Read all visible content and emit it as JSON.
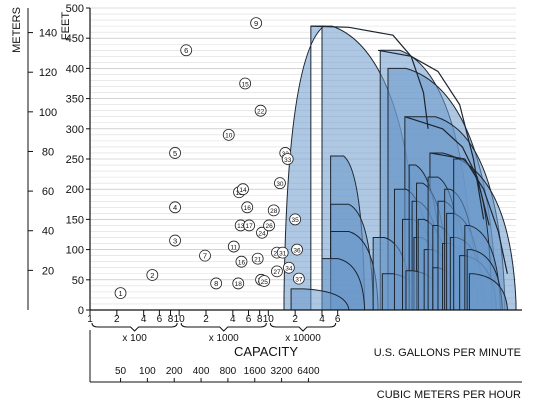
{
  "chart_data": {
    "type": "area",
    "title": "",
    "xlabel": "CAPACITY",
    "xlabel_right": "U.S. GALLONS PER MINUTE",
    "x2label": "CUBIC METERS PER HOUR",
    "ylabel": "FEET",
    "y2label": "METERS",
    "x_scale": "log",
    "xlim": [
      1,
      60000
    ],
    "ylim": [
      0,
      500
    ],
    "grid": "horizontal",
    "y_ticks": [
      "0",
      "50",
      "100",
      "150",
      "200",
      "250",
      "300",
      "350",
      "400",
      "450",
      "500"
    ],
    "y2_ticks": [
      "20",
      "40",
      "60",
      "80",
      "100",
      "120",
      "140"
    ],
    "x_ticks": [
      {
        "gpm": 1,
        "label": "1"
      },
      {
        "gpm": 2,
        "label": "2"
      },
      {
        "gpm": 4,
        "label": "4"
      },
      {
        "gpm": 6,
        "label": "6"
      },
      {
        "gpm": 8,
        "label": "8"
      },
      {
        "gpm": 10,
        "label": "10"
      },
      {
        "gpm": 20,
        "label": "2"
      },
      {
        "gpm": 40,
        "label": "4"
      },
      {
        "gpm": 60,
        "label": "6"
      },
      {
        "gpm": 80,
        "label": "8"
      },
      {
        "gpm": 100,
        "label": "10"
      },
      {
        "gpm": 200,
        "label": "2"
      },
      {
        "gpm": 400,
        "label": "4"
      },
      {
        "gpm": 600,
        "label": "6"
      }
    ],
    "x_multipliers": [
      "x 100",
      "x 1000",
      "x 10000"
    ],
    "x2_ticks": [
      "50",
      "100",
      "200",
      "400",
      "800",
      "1600",
      "3200",
      "6400"
    ],
    "pumps": [
      {
        "id": "1",
        "x_gpm": 220,
        "head_ft": 28
      },
      {
        "id": "2",
        "x_gpm": 500,
        "head_ft": 58
      },
      {
        "id": "3",
        "x_gpm": 900,
        "head_ft": 115
      },
      {
        "id": "4",
        "x_gpm": 900,
        "head_ft": 170
      },
      {
        "id": "5",
        "x_gpm": 900,
        "head_ft": 260
      },
      {
        "id": "6",
        "x_gpm": 1200,
        "head_ft": 430
      },
      {
        "id": "7",
        "x_gpm": 1950,
        "head_ft": 90
      },
      {
        "id": "8",
        "x_gpm": 2600,
        "head_ft": 44
      },
      {
        "id": "9",
        "x_gpm": 7300,
        "head_ft": 475
      },
      {
        "id": "10",
        "x_gpm": 3600,
        "head_ft": 290
      },
      {
        "id": "11",
        "x_gpm": 4100,
        "head_ft": 105
      },
      {
        "id": "12",
        "x_gpm": 4700,
        "head_ft": 195
      },
      {
        "id": "13",
        "x_gpm": 4900,
        "head_ft": 140
      },
      {
        "id": "14",
        "x_gpm": 5200,
        "head_ft": 200
      },
      {
        "id": "15",
        "x_gpm": 5500,
        "head_ft": 375
      },
      {
        "id": "16",
        "x_gpm": 5800,
        "head_ft": 170
      },
      {
        "id": "16",
        "x_gpm": 5000,
        "head_ft": 80
      },
      {
        "id": "17",
        "x_gpm": 6100,
        "head_ft": 140
      },
      {
        "id": "18",
        "x_gpm": 4600,
        "head_ft": 44
      },
      {
        "id": "21",
        "x_gpm": 7600,
        "head_ft": 85
      },
      {
        "id": "22",
        "x_gpm": 8200,
        "head_ft": 330
      },
      {
        "id": "23",
        "x_gpm": 8300,
        "head_ft": 50
      },
      {
        "id": "24",
        "x_gpm": 8500,
        "head_ft": 128
      },
      {
        "id": "25",
        "x_gpm": 9000,
        "head_ft": 48
      },
      {
        "id": "26",
        "x_gpm": 10200,
        "head_ft": 140
      },
      {
        "id": "27",
        "x_gpm": 12500,
        "head_ft": 64
      },
      {
        "id": "28",
        "x_gpm": 11500,
        "head_ft": 165
      },
      {
        "id": "29",
        "x_gpm": 12500,
        "head_ft": 95
      },
      {
        "id": "30",
        "x_gpm": 13500,
        "head_ft": 210
      },
      {
        "id": "31",
        "x_gpm": 14500,
        "head_ft": 95
      },
      {
        "id": "32",
        "x_gpm": 15500,
        "head_ft": 260
      },
      {
        "id": "33",
        "x_gpm": 16500,
        "head_ft": 250
      },
      {
        "id": "34",
        "x_gpm": 17000,
        "head_ft": 70
      },
      {
        "id": "35",
        "x_gpm": 20000,
        "head_ft": 150
      },
      {
        "id": "36",
        "x_gpm": 21000,
        "head_ft": 100
      },
      {
        "id": "37",
        "x_gpm": 22000,
        "head_ft": 52
      }
    ]
  }
}
